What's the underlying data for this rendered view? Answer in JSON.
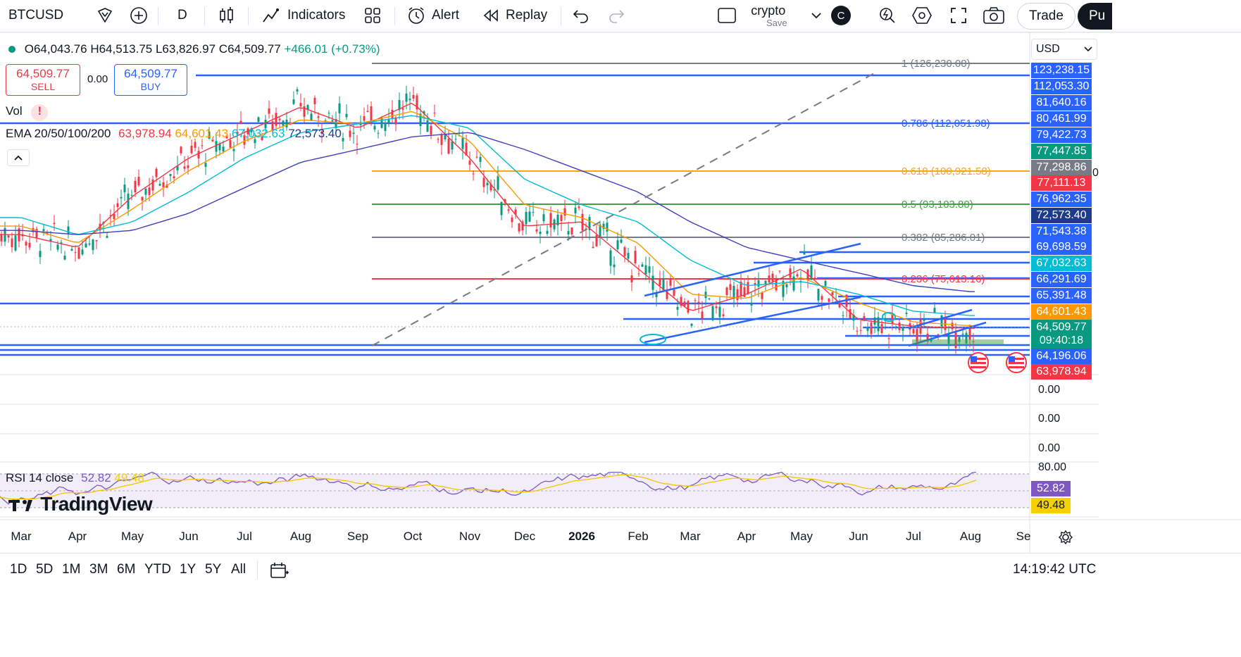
{
  "toolbar": {
    "symbol": "BTCUSD",
    "interval": "D",
    "indicators_label": "Indicators",
    "alert_label": "Alert",
    "replay_label": "Replay",
    "layout_name": "crypto",
    "layout_save": "Save",
    "layout_avatar": "C",
    "trade_label": "Trade",
    "publish_label": "Pu"
  },
  "legend": {
    "open": "O64,043.76",
    "high": "H64,513.75",
    "low": "L63,826.97",
    "close": "C64,509.77",
    "change": "+466.01 (+0.73%)",
    "sell_price": "64,509.77",
    "sell_label": "SELL",
    "spread": "0.00",
    "buy_price": "64,509.77",
    "buy_label": "BUY",
    "vol_label": "Vol",
    "vol_warning": "!",
    "ema_label": "EMA 20/50/100/200",
    "ema20": "63,978.94",
    "ema50": "64,601.43",
    "ema100": "67,032.63",
    "ema200": "72,573.40",
    "rsi_label": "RSI 14 close",
    "rsi_value": "52.82",
    "rsi_ma": "49.48"
  },
  "currency": "USD",
  "fib_levels": [
    {
      "label": "1 (126,230.00)",
      "color": "#787b86"
    },
    {
      "label": "0.786 (112,051.98)",
      "color": "#2962ff"
    },
    {
      "label": "0.618 (100,921.58)",
      "color": "#f5a623"
    },
    {
      "label": "0.5 (93,103.80)",
      "color": "#43a047"
    },
    {
      "label": "0.382 (85,286.01)",
      "color": "#787b86"
    },
    {
      "label": "0.236 (75,613.16)",
      "color": "#f23645"
    }
  ],
  "price_labels": [
    {
      "text": "123,238.15",
      "bg": "#2962ff"
    },
    {
      "text": "112,053.30",
      "bg": "#2962ff"
    },
    {
      "text": "81,640.16",
      "bg": "#2962ff"
    },
    {
      "text": "80,461.99",
      "bg": "#2962ff"
    },
    {
      "text": "79,422.73",
      "bg": "#2962ff"
    },
    {
      "text": "77,447.85",
      "bg": "#089981"
    },
    {
      "text": "77,298.86",
      "bg": "#787b86"
    },
    {
      "text": "77,111.13",
      "bg": "#f23645"
    },
    {
      "text": "76,962.35",
      "bg": "#2962ff"
    },
    {
      "text": "72,573.40",
      "bg": "#1e3a8a"
    },
    {
      "text": "71,543.38",
      "bg": "#2962ff"
    },
    {
      "text": "69,698.59",
      "bg": "#2962ff"
    },
    {
      "text": "67,032.63",
      "bg": "#00bcd4"
    },
    {
      "text": "66,291.69",
      "bg": "#2962ff"
    },
    {
      "text": "65,391.48",
      "bg": "#2962ff"
    },
    {
      "text": "64,601.43",
      "bg": "#ff9800"
    },
    {
      "text": "64,509.77",
      "bg": "#089981"
    },
    {
      "text": "09:40:18",
      "bg": "#089981"
    },
    {
      "text": "64,196.06",
      "bg": "#2962ff"
    },
    {
      "text": "63,978.94",
      "bg": "#f23645"
    }
  ],
  "axis_extra": "0",
  "empty_pane_ticks": [
    "0.00",
    "0.00",
    "0.00"
  ],
  "rsi_ticks": [
    "80.00"
  ],
  "rsi_labels": [
    {
      "text": "52.82",
      "bg": "#7e57c2"
    },
    {
      "text": "49.48",
      "bg": "#f5d000"
    }
  ],
  "months": [
    "Mar",
    "Apr",
    "May",
    "Jun",
    "Jul",
    "Aug",
    "Sep",
    "Oct",
    "Nov",
    "Dec",
    "2026",
    "Feb",
    "Mar",
    "Apr",
    "May",
    "Jun",
    "Jul",
    "Aug",
    "Se"
  ],
  "ranges": [
    "1D",
    "5D",
    "1M",
    "3M",
    "6M",
    "YTD",
    "1Y",
    "5Y",
    "All"
  ],
  "clock": "14:19:42 UTC",
  "watermark": "TradingView",
  "chart_data": {
    "type": "line",
    "title": "",
    "symbol": "BTCUSD",
    "interval": "D",
    "currency": "USD",
    "x": [
      "Mar",
      "Apr",
      "May",
      "Jun",
      "Jul",
      "Aug",
      "Sep",
      "Oct",
      "Nov",
      "Dec",
      "2026",
      "Feb",
      "Mar",
      "Apr",
      "May",
      "Jun",
      "Jul",
      "Aug"
    ],
    "series": [
      {
        "name": "EMA 20",
        "color": "#f23645",
        "values": [
          86000,
          83000,
          95000,
          104000,
          110000,
          116000,
          111000,
          117000,
          104000,
          88000,
          89000,
          78000,
          68000,
          72000,
          78000,
          66000,
          64500,
          64000
        ]
      },
      {
        "name": "EMA 50",
        "color": "#ff9800",
        "values": [
          88000,
          84000,
          92000,
          101000,
          108000,
          113000,
          112000,
          115000,
          108000,
          93000,
          90000,
          84000,
          72000,
          71000,
          76000,
          70000,
          65500,
          64600
        ]
      },
      {
        "name": "EMA 100",
        "color": "#00bcd4",
        "values": [
          90000,
          86000,
          89000,
          96000,
          104000,
          110000,
          112000,
          114000,
          111000,
          99000,
          93000,
          89000,
          80000,
          74000,
          75000,
          72000,
          68000,
          67000
        ]
      },
      {
        "name": "EMA 200",
        "color": "#3f3fbf",
        "values": [
          87000,
          86000,
          87000,
          91000,
          97000,
          103000,
          106000,
          109000,
          110000,
          106000,
          101000,
          96000,
          89000,
          83000,
          80000,
          77000,
          74000,
          72600
        ]
      }
    ],
    "ylim": [
      60000,
      130000
    ]
  }
}
